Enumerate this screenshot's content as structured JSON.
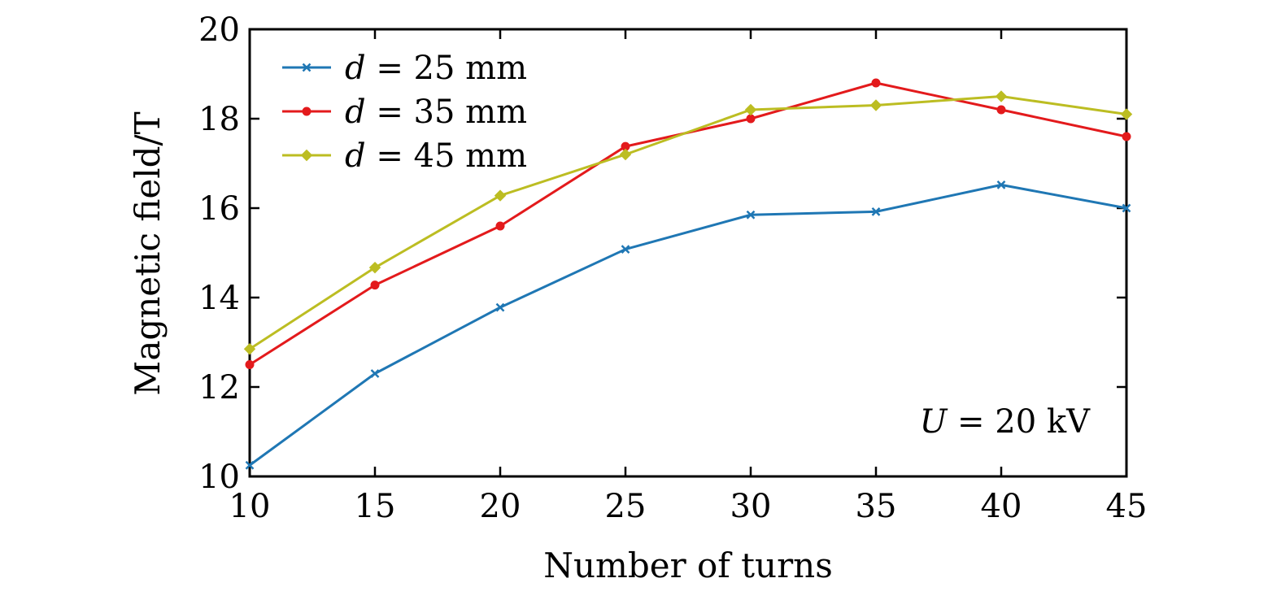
{
  "chart_data": {
    "type": "line",
    "title": "",
    "xlabel": "Number of turns",
    "ylabel": "Magnetic field/T",
    "x": [
      10,
      15,
      20,
      25,
      30,
      35,
      40,
      45
    ],
    "xlim": [
      10,
      45
    ],
    "ylim": [
      10,
      20
    ],
    "xticks": [
      10,
      15,
      20,
      25,
      30,
      35,
      40,
      45
    ],
    "yticks": [
      10,
      12,
      14,
      16,
      18,
      20
    ],
    "grid": false,
    "legend_position": "top-left",
    "series": [
      {
        "name": "d = 25 mm",
        "legend_var": "d",
        "legend_rest": " = 25 mm",
        "color": "#1f77b4",
        "marker": "x",
        "values": [
          10.25,
          12.3,
          13.78,
          15.08,
          15.85,
          15.92,
          16.52,
          16.0
        ]
      },
      {
        "name": "d = 35 mm",
        "legend_var": "d",
        "legend_rest": " = 35 mm",
        "color": "#e31a1c",
        "marker": "circle",
        "values": [
          12.5,
          14.28,
          15.6,
          17.38,
          18.0,
          18.8,
          18.2,
          17.6
        ]
      },
      {
        "name": "d = 45 mm",
        "legend_var": "d",
        "legend_rest": " = 45 mm",
        "color": "#bcbd22",
        "marker": "diamond",
        "values": [
          12.85,
          14.67,
          16.28,
          17.2,
          18.2,
          18.3,
          18.5,
          18.1
        ]
      }
    ],
    "annotation": {
      "var": "U",
      "rest": " = 20 kV"
    }
  }
}
